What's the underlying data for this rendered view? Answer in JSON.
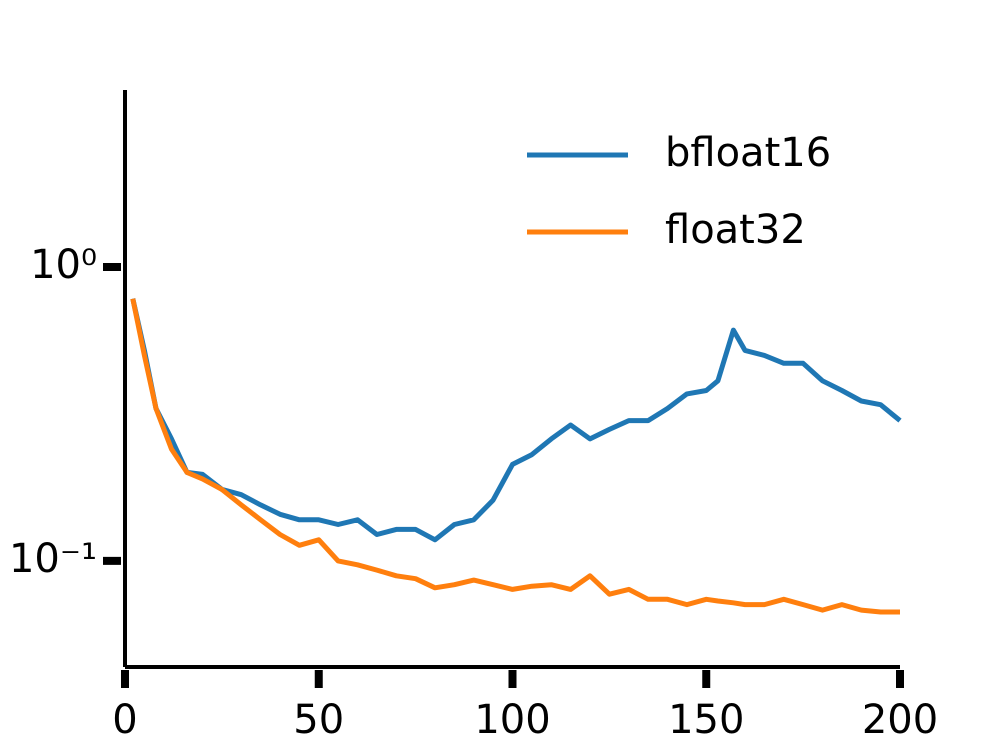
{
  "chart_data": {
    "type": "line",
    "x": [
      2,
      5,
      8,
      12,
      16,
      20,
      25,
      30,
      35,
      40,
      45,
      50,
      55,
      60,
      65,
      70,
      75,
      80,
      85,
      90,
      95,
      100,
      105,
      110,
      115,
      120,
      125,
      130,
      135,
      140,
      145,
      150,
      153,
      157,
      160,
      165,
      170,
      175,
      180,
      185,
      190,
      195,
      200
    ],
    "series": [
      {
        "name": "bfloat16",
        "color": "#1f77b4",
        "values": [
          0.78,
          0.52,
          0.33,
          0.26,
          0.2,
          0.197,
          0.175,
          0.168,
          0.155,
          0.144,
          0.138,
          0.138,
          0.133,
          0.138,
          0.123,
          0.128,
          0.128,
          0.118,
          0.133,
          0.138,
          0.161,
          0.213,
          0.23,
          0.26,
          0.29,
          0.26,
          0.28,
          0.3,
          0.3,
          0.33,
          0.37,
          0.38,
          0.41,
          0.61,
          0.52,
          0.5,
          0.47,
          0.47,
          0.41,
          0.38,
          0.35,
          0.34,
          0.3
        ]
      },
      {
        "name": "float32",
        "color": "#ff7f0e",
        "values": [
          0.78,
          0.5,
          0.33,
          0.24,
          0.2,
          0.19,
          0.175,
          0.155,
          0.138,
          0.123,
          0.113,
          0.118,
          0.1,
          0.097,
          0.093,
          0.089,
          0.087,
          0.081,
          0.083,
          0.086,
          0.083,
          0.08,
          0.082,
          0.083,
          0.08,
          0.089,
          0.077,
          0.08,
          0.074,
          0.074,
          0.071,
          0.074,
          0.073,
          0.072,
          0.071,
          0.071,
          0.074,
          0.071,
          0.068,
          0.071,
          0.068,
          0.067,
          0.067
        ]
      }
    ],
    "xlim": [
      0,
      200
    ],
    "xticks": [
      0,
      50,
      100,
      150,
      200
    ],
    "ylim": [
      0.046,
      4.0
    ],
    "yticks": [
      {
        "value": 1,
        "label": "10⁰"
      },
      {
        "value": 0.1,
        "label": "10⁻¹"
      }
    ],
    "log_y": true,
    "grid": false,
    "legend": "upper right"
  }
}
